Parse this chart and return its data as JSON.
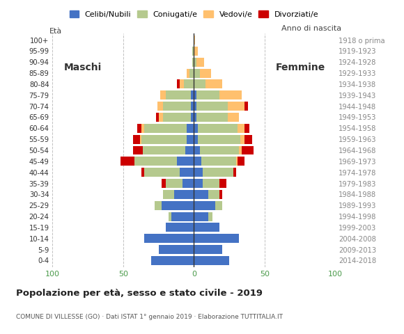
{
  "age_groups": [
    "0-4",
    "5-9",
    "10-14",
    "15-19",
    "20-24",
    "25-29",
    "30-34",
    "35-39",
    "40-44",
    "45-49",
    "50-54",
    "55-59",
    "60-64",
    "65-69",
    "70-74",
    "75-79",
    "80-84",
    "85-89",
    "90-94",
    "95-99",
    "100+"
  ],
  "birth_years": [
    "2014-2018",
    "2009-2013",
    "2004-2008",
    "1999-2003",
    "1994-1998",
    "1989-1993",
    "1984-1988",
    "1979-1983",
    "1974-1978",
    "1969-1973",
    "1964-1968",
    "1959-1963",
    "1954-1958",
    "1949-1953",
    "1944-1948",
    "1939-1943",
    "1934-1938",
    "1929-1933",
    "1924-1928",
    "1919-1923",
    "1918 o prima"
  ],
  "males": {
    "celibe": [
      30,
      25,
      35,
      20,
      16,
      23,
      14,
      8,
      10,
      12,
      6,
      5,
      5,
      2,
      2,
      2,
      0,
      0,
      0,
      0,
      0
    ],
    "coniugato": [
      0,
      0,
      0,
      0,
      2,
      5,
      8,
      12,
      25,
      30,
      30,
      32,
      30,
      20,
      20,
      18,
      7,
      3,
      1,
      1,
      0
    ],
    "vedovo": [
      0,
      0,
      0,
      0,
      0,
      0,
      0,
      0,
      0,
      0,
      0,
      1,
      2,
      3,
      4,
      4,
      3,
      2,
      0,
      0,
      0
    ],
    "divorziato": [
      0,
      0,
      0,
      0,
      0,
      0,
      0,
      3,
      2,
      10,
      7,
      5,
      3,
      2,
      0,
      0,
      2,
      0,
      0,
      0,
      0
    ]
  },
  "females": {
    "celibe": [
      25,
      20,
      32,
      18,
      10,
      15,
      10,
      6,
      6,
      5,
      4,
      3,
      3,
      2,
      2,
      2,
      0,
      0,
      0,
      0,
      0
    ],
    "coniugato": [
      0,
      0,
      0,
      0,
      3,
      5,
      8,
      12,
      22,
      25,
      28,
      30,
      28,
      22,
      22,
      16,
      8,
      4,
      2,
      0,
      0
    ],
    "vedovo": [
      0,
      0,
      0,
      0,
      0,
      0,
      0,
      0,
      0,
      1,
      2,
      3,
      5,
      8,
      12,
      16,
      12,
      8,
      5,
      3,
      1
    ],
    "divorziato": [
      0,
      0,
      0,
      0,
      0,
      0,
      2,
      5,
      2,
      5,
      8,
      5,
      3,
      0,
      2,
      0,
      0,
      0,
      0,
      0,
      0
    ]
  },
  "colors": {
    "celibe": "#4472c4",
    "coniugato": "#b5c98e",
    "vedovo": "#ffc06e",
    "divorziato": "#cc0000"
  },
  "legend_labels": [
    "Celibi/Nubili",
    "Coniugati/e",
    "Vedovi/e",
    "Divorziati/e"
  ],
  "xlim": 100,
  "title": "Popolazione per età, sesso e stato civile - 2019",
  "subtitle": "COMUNE DI VILLESSE (GO) · Dati ISTAT 1° gennaio 2019 · Elaborazione TUTTITALIA.IT",
  "label_eta": "Età",
  "label_anno": "Anno di nascita",
  "label_maschi": "Maschi",
  "label_femmine": "Femmine",
  "bg_color": "#ffffff",
  "grid_color": "#bbbbbb",
  "axis_tick_color": "#4a9a4a"
}
